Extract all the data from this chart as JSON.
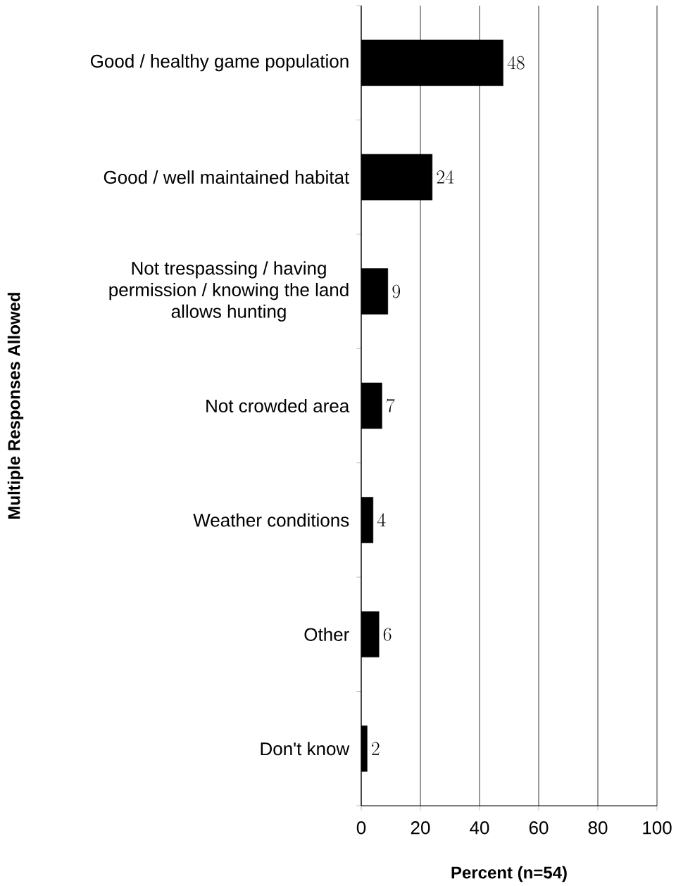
{
  "chart_data": {
    "type": "bar",
    "orientation": "horizontal",
    "xlabel": "Percent (n=54)",
    "ylabel": "Multiple Responses Allowed",
    "categories": [
      "Good / healthy game population",
      "Good / well maintained habitat",
      "Not trespassing / having permission / knowing the land allows hunting",
      "Not crowded area",
      "Weather conditions",
      "Other",
      "Don't know"
    ],
    "values": [
      48,
      24,
      9,
      7,
      4,
      6,
      2
    ],
    "color": "#000000",
    "data_labels": true,
    "xlim": [
      0,
      100
    ],
    "xticks": [
      0,
      20,
      40,
      60,
      80,
      100
    ],
    "grid": "x"
  }
}
